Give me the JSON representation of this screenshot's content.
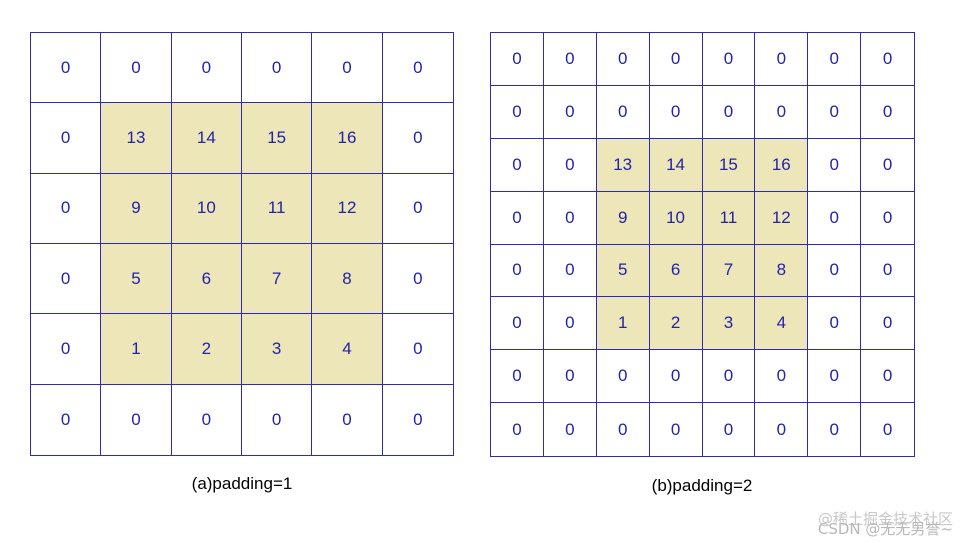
{
  "figure": {
    "panel_a": {
      "caption": "(a)padding=1",
      "grid": [
        [
          "0",
          "0",
          "0",
          "0",
          "0",
          "0"
        ],
        [
          "0",
          "13",
          "14",
          "15",
          "16",
          "0"
        ],
        [
          "0",
          "9",
          "10",
          "11",
          "12",
          "0"
        ],
        [
          "0",
          "5",
          "6",
          "7",
          "8",
          "0"
        ],
        [
          "0",
          "1",
          "2",
          "3",
          "4",
          "0"
        ],
        [
          "0",
          "0",
          "0",
          "0",
          "0",
          "0"
        ]
      ],
      "padding": 1
    },
    "panel_b": {
      "caption": "(b)padding=2",
      "grid": [
        [
          "0",
          "0",
          "0",
          "0",
          "0",
          "0",
          "0",
          "0"
        ],
        [
          "0",
          "0",
          "0",
          "0",
          "0",
          "0",
          "0",
          "0"
        ],
        [
          "0",
          "0",
          "13",
          "14",
          "15",
          "16",
          "0",
          "0"
        ],
        [
          "0",
          "0",
          "9",
          "10",
          "11",
          "12",
          "0",
          "0"
        ],
        [
          "0",
          "0",
          "5",
          "6",
          "7",
          "8",
          "0",
          "0"
        ],
        [
          "0",
          "0",
          "1",
          "2",
          "3",
          "4",
          "0",
          "0"
        ],
        [
          "0",
          "0",
          "0",
          "0",
          "0",
          "0",
          "0",
          "0"
        ],
        [
          "0",
          "0",
          "0",
          "0",
          "0",
          "0",
          "0",
          "0"
        ]
      ],
      "padding": 2
    },
    "colors": {
      "grid_line": "#2b2bb8",
      "number_text": "#2323a8",
      "inner_fill": "#ece6b8",
      "pad_fill": "#ffffff"
    },
    "watermark_1": "@稀土掘金技术社区",
    "watermark_2": "CSDN @无无男誉~"
  }
}
